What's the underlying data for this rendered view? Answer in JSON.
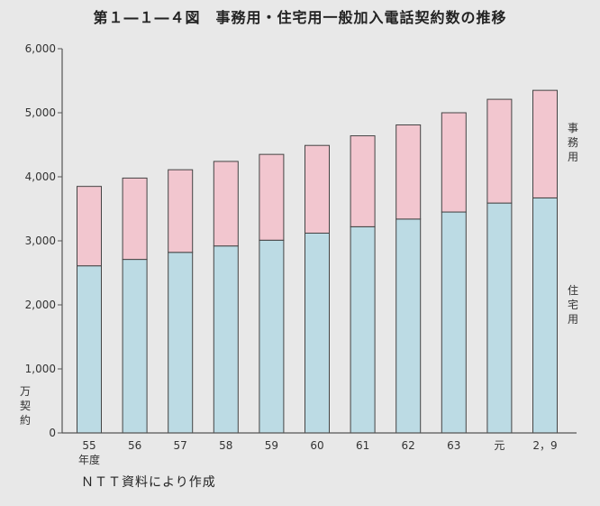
{
  "title": "第１―１―４図　事務用・住宅用一般加入電話契約数の推移",
  "source": "ＮＴＴ資料により作成",
  "y_unit": "万契約",
  "year_unit": "年度",
  "series_labels": {
    "business": "事務用",
    "residential": "住宅用"
  },
  "colors": {
    "business": "#f2c6cf",
    "residential": "#bcdbe4",
    "axis": "#555555"
  },
  "chart_data": {
    "type": "bar",
    "stacked": true,
    "categories": [
      "55",
      "56",
      "57",
      "58",
      "59",
      "60",
      "61",
      "62",
      "63",
      "元",
      "2，9"
    ],
    "series": [
      {
        "name": "住宅用",
        "values": [
          2610,
          2710,
          2820,
          2920,
          3010,
          3120,
          3220,
          3340,
          3450,
          3590,
          3670
        ]
      },
      {
        "name": "事務用",
        "values": [
          1240,
          1270,
          1290,
          1320,
          1340,
          1370,
          1420,
          1470,
          1550,
          1620,
          1680
        ]
      }
    ],
    "totals": [
      3850,
      3980,
      4110,
      4240,
      4350,
      4490,
      4640,
      4810,
      5000,
      5210,
      5350
    ],
    "yticks": [
      0,
      1000,
      2000,
      3000,
      4000,
      5000,
      6000
    ],
    "ytick_labels": [
      "0",
      "1,000",
      "2,000",
      "3,000",
      "4,000",
      "5,000",
      "6,000"
    ],
    "ylim": [
      0,
      6000
    ],
    "title": "",
    "xlabel": "",
    "ylabel": "万契約",
    "legend": "right, inline vertical labels",
    "grid": false
  }
}
